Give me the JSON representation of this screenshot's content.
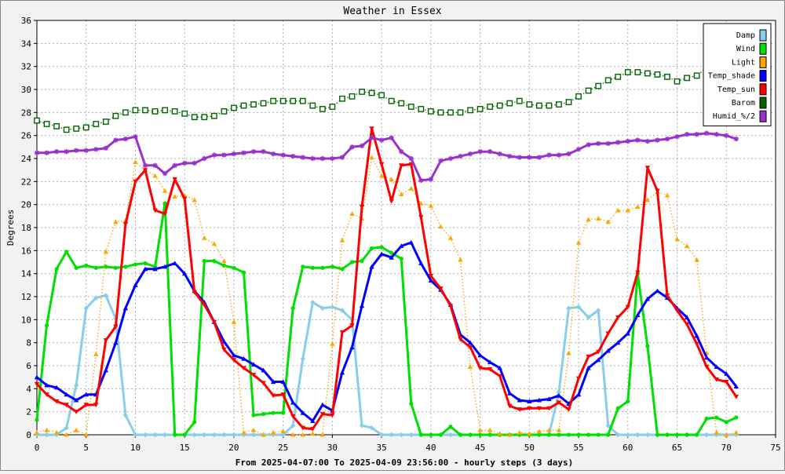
{
  "chart_data": {
    "type": "line",
    "title": "Weather in Essex",
    "xlabel": "From 2025-04-07:00 To 2025-04-09 23:56:00 - hourly steps (3 days)",
    "ylabel": "Degrees",
    "xlim": [
      0,
      75
    ],
    "ylim": [
      0,
      36
    ],
    "xticks": [
      0,
      5,
      10,
      15,
      20,
      25,
      30,
      35,
      40,
      45,
      50,
      55,
      60,
      65,
      70,
      75
    ],
    "yticks": [
      0,
      2,
      4,
      6,
      8,
      10,
      12,
      14,
      16,
      18,
      20,
      22,
      24,
      26,
      28,
      30,
      32,
      34,
      36
    ],
    "grid": true,
    "legend_position": "top-right",
    "series": [
      {
        "name": "Damp",
        "color": "#87ceeb",
        "style": "solid",
        "marker": "diamond",
        "values": [
          0,
          0,
          0,
          0.6,
          4.3,
          11.0,
          11.9,
          12.1,
          10.1,
          1.7,
          0,
          0,
          0,
          0,
          0,
          0,
          0,
          0,
          0,
          0,
          0,
          0,
          0,
          0,
          0,
          0,
          0.8,
          6.6,
          11.5,
          11.0,
          11.1,
          10.8,
          10.0,
          0.8,
          0.6,
          0,
          0,
          0,
          0,
          0,
          0,
          0,
          0,
          0,
          0,
          0,
          0,
          0,
          0,
          0,
          0,
          0,
          0,
          3.7,
          11.0,
          11.1,
          10.2,
          10.8,
          0.8,
          0,
          0,
          0,
          0,
          0,
          0,
          0,
          0,
          0,
          0,
          0,
          0,
          0
        ]
      },
      {
        "name": "Wind",
        "color": "#00e000",
        "style": "solid",
        "marker": "circle",
        "values": [
          1.3,
          9.5,
          14.4,
          15.9,
          14.5,
          14.7,
          14.5,
          14.6,
          14.5,
          14.6,
          14.8,
          14.9,
          14.6,
          20.1,
          0,
          0,
          1.1,
          15.1,
          15.1,
          14.7,
          14.5,
          14.1,
          1.7,
          1.8,
          1.9,
          1.9,
          11.0,
          14.6,
          14.5,
          14.5,
          14.6,
          14.4,
          15.0,
          15.1,
          16.2,
          16.3,
          15.8,
          15.3,
          2.7,
          0,
          0,
          0,
          0.7,
          0,
          0,
          0,
          0,
          0,
          0,
          0,
          0,
          0,
          0,
          0,
          0,
          0,
          0,
          0,
          0,
          2.3,
          2.9,
          14.0,
          7.7,
          0,
          0,
          0,
          0,
          0,
          1.4,
          1.5,
          1.1,
          1.5
        ]
      },
      {
        "name": "Light",
        "color": "#ffa500",
        "style": "dotted",
        "marker": "triangle",
        "values": [
          0.2,
          0.4,
          0.2,
          0,
          0.4,
          0,
          7.0,
          15.9,
          18.5,
          18.6,
          23.7,
          23.0,
          22.5,
          21.2,
          20.7,
          20.8,
          20.4,
          17.1,
          16.6,
          15.1,
          9.8,
          0.2,
          0.4,
          0,
          0.2,
          0.3,
          0,
          0,
          0.1,
          0,
          7.9,
          16.9,
          19.2,
          18.8,
          24.1,
          22.5,
          22.2,
          20.9,
          21.4,
          20.1,
          19.9,
          18.1,
          17.1,
          15.2,
          5.9,
          0.4,
          0.4,
          0.1,
          0,
          0.2,
          0.1,
          0.3,
          0.4,
          0.4,
          7.1,
          16.7,
          18.7,
          18.8,
          18.5,
          19.5,
          19.5,
          19.8,
          20.4,
          21.1,
          20.8,
          17.0,
          16.4,
          15.2,
          7.1,
          0.2,
          0,
          0.2
        ]
      },
      {
        "name": "Temp_shade",
        "color": "#0000ff",
        "style": "solid",
        "marker": "triangle",
        "values": [
          5.0,
          4.3,
          4.1,
          3.5,
          3.0,
          3.5,
          3.5,
          5.6,
          8.0,
          11.0,
          13.0,
          14.4,
          14.4,
          14.6,
          14.9,
          14.0,
          12.5,
          11.5,
          9.8,
          8.1,
          6.9,
          6.6,
          6.1,
          5.6,
          4.6,
          4.6,
          2.8,
          1.9,
          1.2,
          2.6,
          2.1,
          5.4,
          7.6,
          11.2,
          14.6,
          15.7,
          15.4,
          16.4,
          16.7,
          14.9,
          13.4,
          12.6,
          11.3,
          8.7,
          8.0,
          6.9,
          6.3,
          5.8,
          3.6,
          3.0,
          2.9,
          3.0,
          3.1,
          3.4,
          2.7,
          3.5,
          5.8,
          6.5,
          7.3,
          8.0,
          8.8,
          10.4,
          11.8,
          12.5,
          11.9,
          11.0,
          10.2,
          8.6,
          6.7,
          5.9,
          5.3,
          4.2
        ]
      },
      {
        "name": "Temp_sun",
        "color": "#ff0000",
        "style": "solid",
        "marker": "triangle-down",
        "values": [
          4.4,
          3.5,
          2.9,
          2.6,
          2.0,
          2.6,
          2.6,
          8.2,
          9.4,
          18.3,
          22.0,
          23.0,
          19.5,
          19.2,
          22.2,
          20.5,
          12.4,
          11.3,
          9.8,
          7.4,
          6.5,
          5.8,
          5.2,
          4.5,
          3.4,
          3.5,
          1.6,
          0.6,
          0.5,
          1.8,
          1.7,
          8.9,
          9.5,
          19.8,
          26.6,
          23.5,
          20.3,
          23.4,
          23.5,
          18.9,
          13.8,
          12.7,
          11.2,
          8.3,
          7.6,
          5.8,
          5.7,
          5.1,
          2.5,
          2.2,
          2.3,
          2.3,
          2.3,
          2.8,
          2.2,
          4.9,
          6.8,
          7.2,
          8.8,
          10.2,
          11.1,
          14.1,
          23.2,
          21.2,
          12.1,
          10.8,
          9.6,
          7.9,
          5.9,
          4.8,
          4.6,
          3.3
        ]
      },
      {
        "name": "Barom",
        "color": "#006400",
        "style": "dotted",
        "marker": "square",
        "values": [
          27.3,
          27.0,
          26.8,
          26.5,
          26.6,
          26.7,
          27.0,
          27.2,
          27.7,
          28.0,
          28.2,
          28.2,
          28.1,
          28.2,
          28.1,
          27.9,
          27.6,
          27.6,
          27.7,
          28.1,
          28.4,
          28.6,
          28.7,
          28.8,
          29.0,
          29.0,
          29.0,
          29.0,
          28.6,
          28.3,
          28.5,
          29.2,
          29.4,
          29.8,
          29.7,
          29.5,
          29.0,
          28.8,
          28.5,
          28.3,
          28.1,
          28.0,
          28.0,
          28.0,
          28.2,
          28.3,
          28.5,
          28.6,
          28.8,
          29.0,
          28.7,
          28.6,
          28.6,
          28.7,
          28.9,
          29.4,
          29.9,
          30.3,
          30.8,
          31.1,
          31.5,
          31.5,
          31.4,
          31.3,
          31.1,
          30.7,
          31.0,
          31.2,
          31.9,
          32.0,
          32.2,
          32.3
        ]
      },
      {
        "name": "Humid_%/2",
        "color": "#9932cc",
        "style": "solid",
        "marker": "star",
        "values": [
          24.5,
          24.5,
          24.6,
          24.6,
          24.7,
          24.7,
          24.8,
          24.9,
          25.6,
          25.7,
          25.9,
          23.4,
          23.4,
          22.7,
          23.4,
          23.6,
          23.6,
          24.0,
          24.3,
          24.3,
          24.4,
          24.5,
          24.6,
          24.6,
          24.4,
          24.3,
          24.2,
          24.1,
          24.0,
          24.0,
          24.0,
          24.1,
          25.0,
          25.1,
          25.8,
          25.6,
          25.8,
          24.6,
          24.0,
          22.1,
          22.2,
          23.8,
          24.0,
          24.2,
          24.4,
          24.6,
          24.6,
          24.4,
          24.2,
          24.1,
          24.1,
          24.1,
          24.3,
          24.3,
          24.4,
          24.8,
          25.2,
          25.3,
          25.3,
          25.4,
          25.5,
          25.6,
          25.5,
          25.6,
          25.7,
          25.9,
          26.1,
          26.1,
          26.2,
          26.1,
          26.0,
          25.7
        ]
      }
    ]
  }
}
